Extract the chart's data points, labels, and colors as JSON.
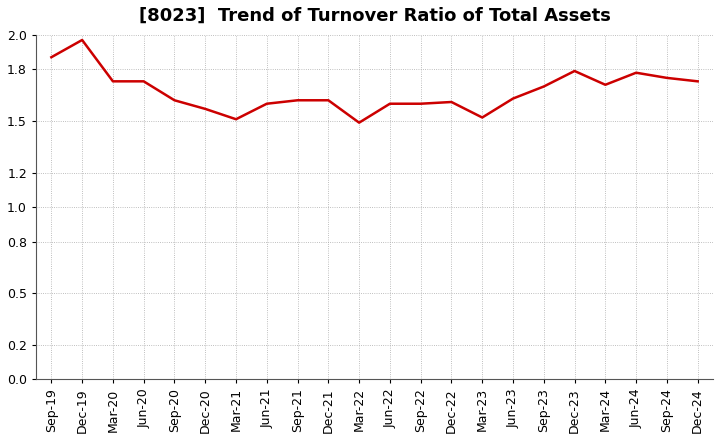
{
  "title": "[8023]  Trend of Turnover Ratio of Total Assets",
  "x_labels": [
    "Sep-19",
    "Dec-19",
    "Mar-20",
    "Jun-20",
    "Sep-20",
    "Dec-20",
    "Mar-21",
    "Jun-21",
    "Sep-21",
    "Dec-21",
    "Mar-22",
    "Jun-22",
    "Sep-22",
    "Dec-22",
    "Mar-23",
    "Jun-23",
    "Sep-23",
    "Dec-23",
    "Mar-24",
    "Jun-24",
    "Sep-24",
    "Dec-24"
  ],
  "y_values": [
    1.87,
    1.97,
    1.73,
    1.73,
    1.62,
    1.57,
    1.51,
    1.6,
    1.62,
    1.62,
    1.49,
    1.6,
    1.6,
    1.61,
    1.52,
    1.63,
    1.7,
    1.79,
    1.71,
    1.78,
    1.75,
    1.73
  ],
  "line_color": "#cc0000",
  "background_color": "#ffffff",
  "grid_color": "#aaaaaa",
  "ylim": [
    0.0,
    2.0
  ],
  "yticks": [
    0.0,
    0.2,
    0.5,
    0.8,
    1.0,
    1.2,
    1.5,
    1.8,
    2.0
  ],
  "title_fontsize": 13,
  "tick_fontsize": 9,
  "line_width": 1.8
}
